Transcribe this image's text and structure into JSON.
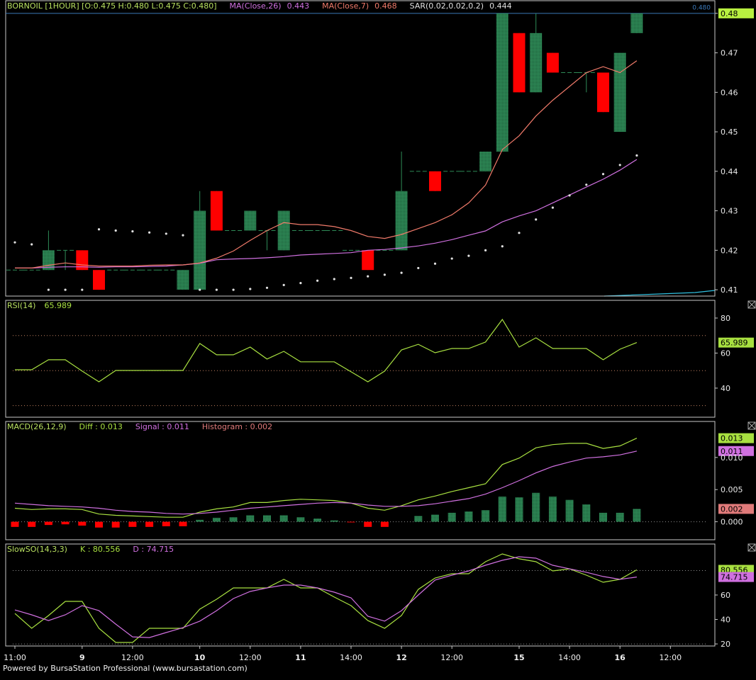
{
  "chart_data": [
    {
      "type": "candlestick",
      "title": "BORNOIL [1HOUR] [O:0.475 H:0.480 L:0.475 C:0.480]",
      "title_color": "#b8e060",
      "open": [
        0.415,
        0.415,
        0.415,
        0.42,
        0.42,
        0.415,
        0.415,
        0.415,
        0.415,
        0.415,
        0.41,
        0.41,
        0.435,
        0.425,
        0.425,
        0.425,
        0.42,
        0.425,
        0.425,
        0.425,
        0.42,
        0.42,
        0.42,
        0.42,
        0.44,
        0.44,
        0.44,
        0.44,
        0.44,
        0.445,
        0.475,
        0.46,
        0.47,
        0.465,
        0.465,
        0.465,
        0.45,
        0.475
      ],
      "high": [
        0.415,
        0.415,
        0.425,
        0.42,
        0.42,
        0.415,
        0.415,
        0.415,
        0.415,
        0.415,
        0.415,
        0.435,
        0.435,
        0.425,
        0.43,
        0.425,
        0.43,
        0.425,
        0.425,
        0.425,
        0.42,
        0.42,
        0.42,
        0.445,
        0.44,
        0.44,
        0.44,
        0.44,
        0.445,
        0.48,
        0.475,
        0.48,
        0.47,
        0.465,
        0.465,
        0.465,
        0.47,
        0.48
      ],
      "low": [
        0.415,
        0.415,
        0.415,
        0.415,
        0.415,
        0.41,
        0.415,
        0.415,
        0.415,
        0.415,
        0.41,
        0.41,
        0.425,
        0.425,
        0.425,
        0.42,
        0.42,
        0.425,
        0.425,
        0.425,
        0.42,
        0.415,
        0.42,
        0.42,
        0.44,
        0.435,
        0.44,
        0.44,
        0.44,
        0.445,
        0.46,
        0.46,
        0.465,
        0.465,
        0.46,
        0.455,
        0.45,
        0.475
      ],
      "close": [
        0.415,
        0.415,
        0.42,
        0.42,
        0.415,
        0.41,
        0.415,
        0.415,
        0.415,
        0.415,
        0.415,
        0.43,
        0.425,
        0.425,
        0.43,
        0.425,
        0.43,
        0.425,
        0.425,
        0.425,
        0.42,
        0.415,
        0.42,
        0.435,
        0.44,
        0.435,
        0.44,
        0.44,
        0.445,
        0.48,
        0.46,
        0.475,
        0.465,
        0.465,
        0.465,
        0.455,
        0.47,
        0.48
      ],
      "up_color": "#2e8b57",
      "down_color": "#ff0000",
      "overlays": [
        {
          "name": "MA(Close,26)",
          "color": "#d070e0",
          "values": [
            0.4155,
            0.4155,
            0.4157,
            0.4158,
            0.4158,
            0.4157,
            0.4158,
            0.4158,
            0.4159,
            0.416,
            0.4163,
            0.4167,
            0.4176,
            0.4178,
            0.4179,
            0.4181,
            0.4184,
            0.4188,
            0.419,
            0.4192,
            0.4194,
            0.42,
            0.4202,
            0.4206,
            0.4211,
            0.4218,
            0.4227,
            0.4238,
            0.4249,
            0.4272,
            0.4287,
            0.43,
            0.432,
            0.434,
            0.436,
            0.438,
            0.4403,
            0.443
          ]
        },
        {
          "name": "MA(Close,7)",
          "color": "#f07a6a",
          "values": [
            0.4155,
            0.4155,
            0.4162,
            0.4168,
            0.4163,
            0.416,
            0.416,
            0.416,
            0.4162,
            0.4163,
            0.4163,
            0.4168,
            0.418,
            0.4198,
            0.4225,
            0.425,
            0.427,
            0.4265,
            0.4265,
            0.426,
            0.425,
            0.4235,
            0.423,
            0.424,
            0.4255,
            0.427,
            0.429,
            0.432,
            0.4365,
            0.4455,
            0.449,
            0.454,
            0.458,
            0.4615,
            0.465,
            0.4665,
            0.465,
            0.468
          ]
        },
        {
          "name": "SAR(0.02,0.02,0.2)",
          "color": "#e0e0e0",
          "style": "dots",
          "values": [
            0.422,
            0.4215,
            0.41,
            0.41,
            0.41,
            0.4253,
            0.425,
            0.4248,
            0.4245,
            0.4242,
            0.4238,
            0.41,
            0.41,
            0.41,
            0.4102,
            0.4105,
            0.4112,
            0.4117,
            0.4123,
            0.4127,
            0.413,
            0.4134,
            0.4138,
            0.4143,
            0.4155,
            0.4166,
            0.4179,
            0.4186,
            0.42,
            0.421,
            0.4244,
            0.4278,
            0.4308,
            0.4339,
            0.4366,
            0.4393,
            0.4416,
            0.444
          ]
        }
      ],
      "current_price": {
        "value": 0.48,
        "label": "0.480",
        "color": "#3a78b8",
        "box_color": "#b8f040"
      },
      "ylim": [
        0.4084,
        0.4832
      ],
      "yticks": [
        0.41,
        0.42,
        0.43,
        0.44,
        0.45,
        0.46,
        0.47,
        0.48
      ]
    },
    {
      "type": "line",
      "title": "RSI(14)",
      "title_color": "#b8e060",
      "series": [
        {
          "color": "#a8e040",
          "values": [
            50.5,
            50.5,
            56.2,
            56.2,
            49.7,
            43.6,
            50.1,
            50.1,
            50.1,
            50.1,
            50.1,
            65.5,
            59,
            59,
            63.4,
            56.6,
            61,
            55,
            55,
            55,
            49.3,
            43.6,
            49.7,
            61.8,
            65,
            60.2,
            62.6,
            62.6,
            66.3,
            79.2,
            63.4,
            68.7,
            62.6,
            62.6,
            62.6,
            56.2,
            62.2,
            65.989
          ]
        }
      ],
      "levels": [
        30,
        50,
        70
      ],
      "level_color": "#c08060",
      "ylim": [
        23.4,
        90.1
      ],
      "yticks": [
        40,
        60,
        80
      ]
    },
    {
      "type": "macd",
      "title": "MACD(26,12,9)",
      "title_color": "#b8e060",
      "separator": " : ",
      "series": [
        {
          "name": "Diff",
          "color": "#a8e040",
          "values": [
            0.0021,
            0.0019,
            0.002,
            0.002,
            0.0019,
            0.0012,
            0.001,
            0.0009,
            0.0008,
            0.0007,
            0.0007,
            0.0015,
            0.002,
            0.0023,
            0.003,
            0.003,
            0.0033,
            0.0035,
            0.0034,
            0.0033,
            0.0029,
            0.0021,
            0.0018,
            0.0025,
            0.0034,
            0.004,
            0.0047,
            0.0053,
            0.0059,
            0.0089,
            0.0099,
            0.0115,
            0.012,
            0.0122,
            0.0122,
            0.0114,
            0.0118,
            0.013
          ]
        },
        {
          "name": "Signal",
          "color": "#d070e0",
          "values": [
            0.0029,
            0.0027,
            0.0025,
            0.0024,
            0.0023,
            0.0021,
            0.0018,
            0.0016,
            0.0015,
            0.0013,
            0.0012,
            0.0013,
            0.0015,
            0.0018,
            0.0021,
            0.0023,
            0.0025,
            0.0027,
            0.0029,
            0.003,
            0.0029,
            0.0026,
            0.0024,
            0.0024,
            0.0025,
            0.0028,
            0.0032,
            0.0036,
            0.0043,
            0.0053,
            0.0064,
            0.0076,
            0.0086,
            0.0093,
            0.0099,
            0.0101,
            0.0104,
            0.011
          ]
        },
        {
          "name": "Histogram",
          "style": "histogram",
          "color": "#2e8b57",
          "negative_color": "#ff0000",
          "box_color": "#e07a7a",
          "values": [
            -0.0008,
            -0.0008,
            -0.0005,
            -0.0004,
            -0.0006,
            -0.0009,
            -0.0009,
            -0.0008,
            -0.0008,
            -0.0007,
            -0.0007,
            0.0003,
            0.0006,
            0.0007,
            0.001,
            0.001,
            0.001,
            0.0007,
            0.0005,
            0.0002,
            -0.0001,
            -0.0008,
            -0.0008,
            0,
            0.0009,
            0.0011,
            0.0014,
            0.0016,
            0.0018,
            0.0039,
            0.0038,
            0.0045,
            0.0039,
            0.0034,
            0.0027,
            0.0014,
            0.0014,
            0.002
          ]
        }
      ],
      "levels": [
        0
      ],
      "level_color": "#909090",
      "ylim": [
        -0.0028,
        0.0156
      ],
      "yticks": [
        {
          "value": 0,
          "label": "0.000"
        },
        {
          "value": 0.005,
          "label": "0.005"
        },
        {
          "value": 0.01,
          "label": "0.010"
        }
      ]
    },
    {
      "type": "line",
      "title": "SlowSO(14,3,3)",
      "title_color": "#b8e060",
      "separator": " : ",
      "series": [
        {
          "name": "K",
          "color": "#a8e040",
          "values": [
            44.9,
            32.8,
            43.2,
            54.8,
            54.8,
            32.8,
            21.2,
            21.2,
            32.8,
            32.8,
            32.8,
            48.4,
            56.5,
            65.8,
            65.8,
            65.8,
            72.8,
            65.8,
            65.8,
            58.3,
            51.3,
            39.1,
            32.8,
            43.2,
            64.6,
            73.9,
            77.4,
            77.4,
            87.2,
            93.6,
            89.6,
            87.2,
            79.7,
            81.4,
            76.2,
            70.4,
            72.8,
            80.556
          ]
        },
        {
          "name": "D",
          "color": "#d070e0",
          "values": [
            47.8,
            43.8,
            39.1,
            43.8,
            51.3,
            47.2,
            36.2,
            25.8,
            25.2,
            29.3,
            33.3,
            38.6,
            47.2,
            57.1,
            62.9,
            65.8,
            68.1,
            68.1,
            65.8,
            62.3,
            57.7,
            42.6,
            38.6,
            47.2,
            60,
            72.2,
            76.2,
            79.7,
            84.3,
            88.4,
            91.3,
            90.1,
            84.3,
            81.4,
            78.6,
            75.1,
            72.8,
            74.715
          ]
        }
      ],
      "levels": [
        20,
        80
      ],
      "level_color": "#909090",
      "ylim": [
        18.3,
        101.7
      ],
      "yticks": [
        20,
        40,
        60
      ],
      "x_labels": [
        "11:00",
        null,
        null,
        null,
        "9",
        null,
        null,
        "12:00",
        null,
        null,
        null,
        "10",
        null,
        null,
        "12:00",
        null,
        null,
        "11",
        null,
        null,
        "14:00",
        null,
        null,
        "12",
        null,
        null,
        "12:00",
        null,
        null,
        null,
        "15",
        null,
        null,
        "14:00",
        null,
        null,
        "16",
        null,
        null,
        "12:00"
      ]
    }
  ],
  "footer": "Powered by BursaStation Professional (www.bursastation.com)"
}
